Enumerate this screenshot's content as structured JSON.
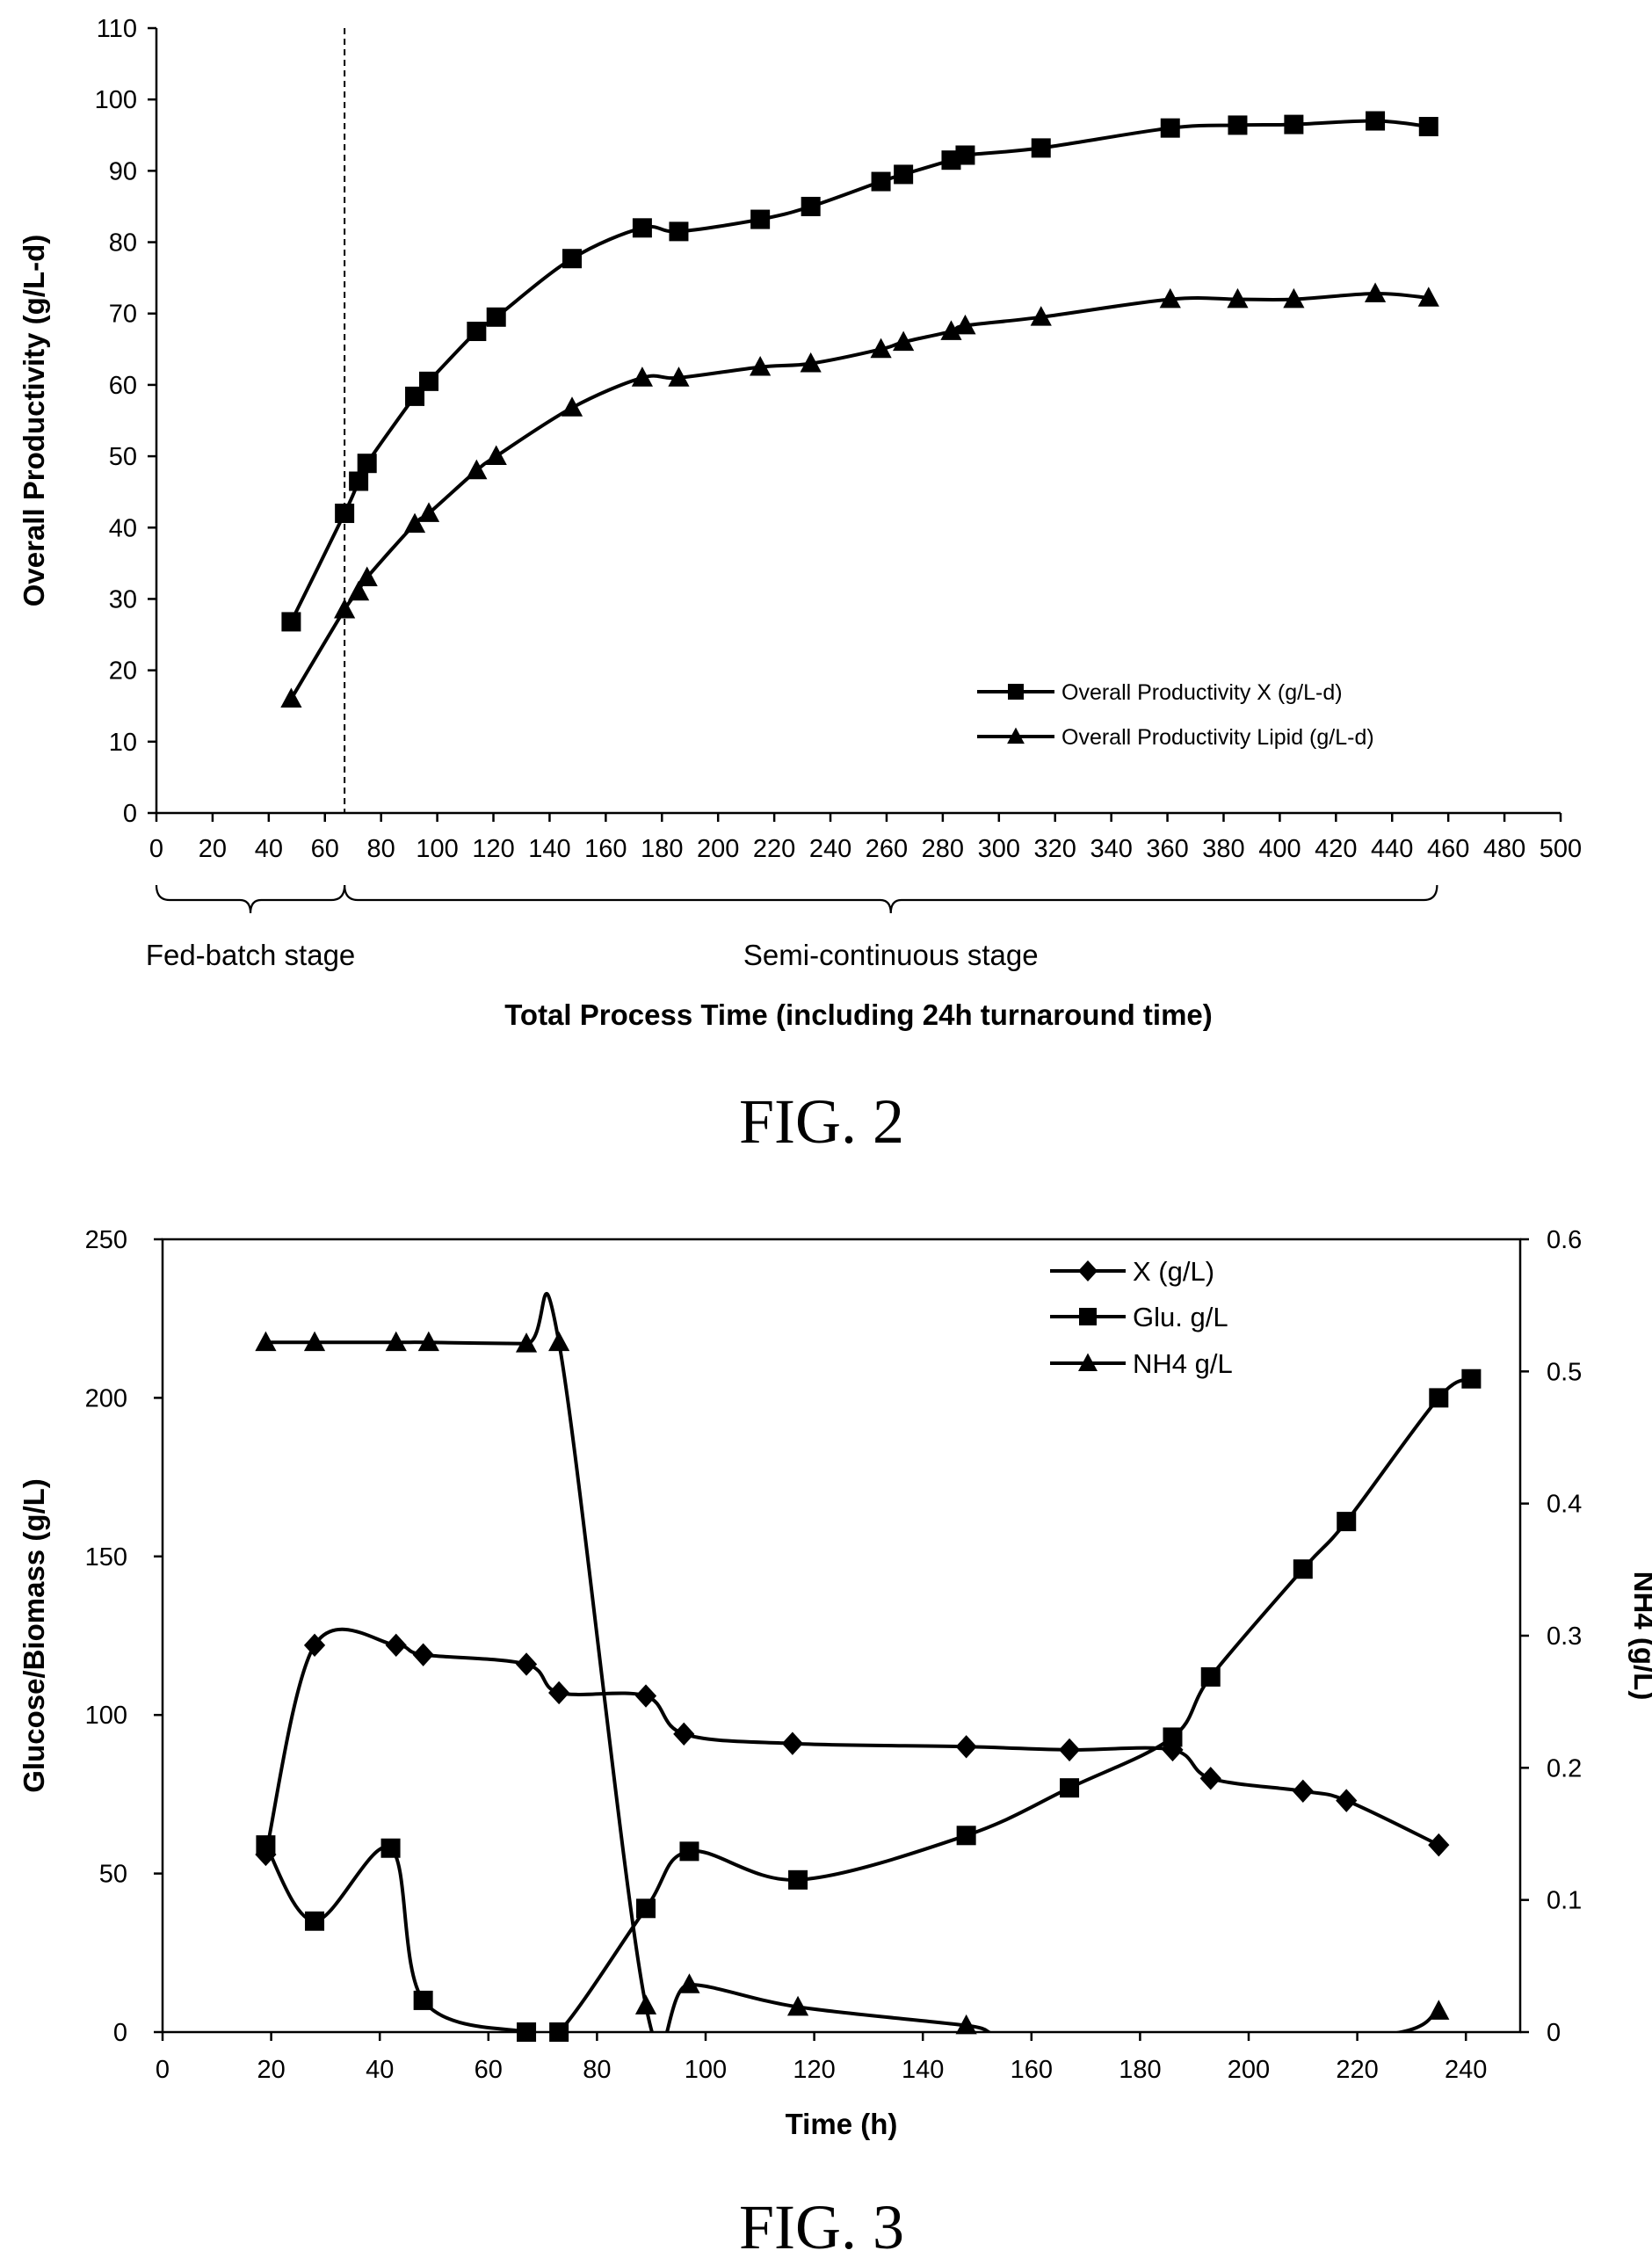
{
  "chart_data": [
    {
      "type": "line",
      "title": "",
      "caption": "FIG. 2",
      "xlabel": "Total Process Time (including 24h turnaround time)",
      "ylabel": "Overall Productivity (g/L-d)",
      "xlim": [
        0,
        500
      ],
      "ylim": [
        0,
        110
      ],
      "xticks": [
        0,
        20,
        40,
        60,
        80,
        100,
        120,
        140,
        160,
        180,
        200,
        220,
        240,
        260,
        280,
        300,
        320,
        340,
        360,
        380,
        400,
        420,
        440,
        460,
        480,
        500
      ],
      "yticks": [
        0,
        10,
        20,
        30,
        40,
        50,
        60,
        70,
        80,
        90,
        100,
        110
      ],
      "grid": false,
      "legend_position": "bottom-right",
      "stage_boundary_x": 67,
      "stages": [
        {
          "label": "Fed-batch stage",
          "x_start": 0,
          "x_end": 67
        },
        {
          "label": "Semi-continuous stage",
          "x_start": 67,
          "x_end": 456
        }
      ],
      "series": [
        {
          "name": "Overall Productivity X (g/L-d)",
          "marker": "square",
          "x": [
            48,
            67,
            72,
            75,
            92,
            97,
            114,
            121,
            148,
            173,
            186,
            215,
            233,
            258,
            266,
            283,
            288,
            315,
            361,
            385,
            405,
            434,
            453
          ],
          "y": [
            26.8,
            42,
            46.5,
            49,
            58.4,
            60.5,
            67.5,
            69.5,
            77.7,
            82,
            81.5,
            83.2,
            85,
            88.5,
            89.5,
            91.5,
            92.2,
            93.2,
            96,
            96.4,
            96.5,
            97,
            96.2
          ]
        },
        {
          "name": "Overall Productivity Lipid (g/L-d)",
          "marker": "triangle",
          "x": [
            48,
            67,
            72,
            75,
            92,
            97,
            114,
            121,
            148,
            173,
            186,
            215,
            233,
            258,
            266,
            283,
            288,
            315,
            361,
            385,
            405,
            434,
            453
          ],
          "y": [
            16,
            28.5,
            31,
            33,
            40.5,
            42,
            48,
            50,
            56.8,
            61,
            61,
            62.5,
            63,
            65,
            66,
            67.5,
            68.3,
            69.5,
            72,
            72,
            72,
            72.8,
            72.2
          ]
        }
      ]
    },
    {
      "type": "line",
      "title": "",
      "caption": "FIG. 3",
      "xlabel": "Time (h)",
      "ylabel": "Glucose/Biomass (g/L)",
      "y2label": "NH4 (g/L)",
      "xlim": [
        0,
        250
      ],
      "ylim": [
        0,
        250
      ],
      "y2lim": [
        0,
        0.6
      ],
      "xticks": [
        0,
        20,
        40,
        60,
        80,
        100,
        120,
        140,
        160,
        180,
        200,
        220,
        240
      ],
      "yticks": [
        0,
        50,
        100,
        150,
        200,
        250
      ],
      "y2ticks": [
        0,
        0.1,
        0.2,
        0.3,
        0.4,
        0.5,
        0.6
      ],
      "grid": false,
      "legend_position": "top-right",
      "series": [
        {
          "name": "X (g/L)",
          "marker": "diamond",
          "axis": "left",
          "x": [
            19,
            28,
            43,
            48,
            67,
            73,
            89,
            96,
            116,
            148,
            167,
            186,
            193,
            210,
            218,
            235
          ],
          "y": [
            56,
            122,
            122,
            119,
            116,
            107,
            106,
            94,
            91,
            90,
            89,
            89,
            80,
            76,
            73,
            59
          ]
        },
        {
          "name": "Glu. g/L",
          "marker": "square",
          "axis": "left",
          "x": [
            19,
            28,
            42,
            48,
            67,
            73,
            89,
            97,
            117,
            148,
            167,
            186,
            193,
            210,
            218,
            235,
            241
          ],
          "y": [
            59,
            35,
            58,
            10,
            0,
            0,
            39,
            57,
            48,
            62,
            77,
            93,
            112,
            146,
            161,
            200,
            206
          ]
        },
        {
          "name": "NH4 g/L",
          "marker": "triangle",
          "axis": "right",
          "x": [
            19,
            28,
            43,
            49,
            67,
            73,
            89,
            97,
            117,
            148,
            160,
            222,
            235
          ],
          "y": [
            0.522,
            0.522,
            0.522,
            0.522,
            0.521,
            0.522,
            0.02,
            0.036,
            0.019,
            0.005,
            -0.003,
            -0.003,
            0.016
          ]
        }
      ]
    }
  ]
}
